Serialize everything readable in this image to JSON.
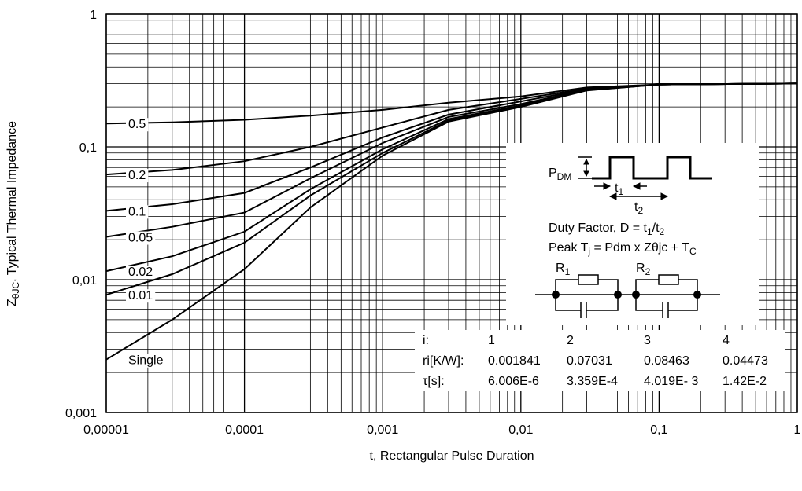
{
  "chart_data": {
    "type": "line",
    "xlabel": "t, Rectangular Pulse Duration",
    "ylabel": [
      "Z",
      "θJC",
      ", Typical Thermal Impedance"
    ],
    "log_x": true,
    "log_y": true,
    "grid": true,
    "minor_grid": true,
    "xlim": [
      1e-05,
      1
    ],
    "ylim": [
      0.001,
      1
    ],
    "xticks": [
      {
        "value": 1e-05,
        "label": "0,00001"
      },
      {
        "value": 0.0001,
        "label": "0,0001"
      },
      {
        "value": 0.001,
        "label": "0,001"
      },
      {
        "value": 0.01,
        "label": "0,01"
      },
      {
        "value": 0.1,
        "label": "0,1"
      },
      1
    ],
    "yticks": [
      {
        "value": 0.001,
        "label": "0,001"
      },
      {
        "value": 0.01,
        "label": "0,01"
      },
      {
        "value": 0.1,
        "label": "0,1"
      },
      1
    ],
    "x": [
      1e-05,
      3e-05,
      0.0001,
      0.0003,
      0.001,
      0.003,
      0.01,
      0.03,
      0.1,
      1
    ],
    "series": [
      {
        "name": "0.5",
        "color": "#000000",
        "values": [
          0.15,
          0.153,
          0.16,
          0.172,
          0.19,
          0.215,
          0.24,
          0.28,
          0.295,
          0.3
        ]
      },
      {
        "name": "0.2",
        "color": "#000000",
        "values": [
          0.062,
          0.067,
          0.078,
          0.1,
          0.14,
          0.19,
          0.23,
          0.275,
          0.295,
          0.3
        ]
      },
      {
        "name": "0.1",
        "color": "#000000",
        "values": [
          0.033,
          0.037,
          0.045,
          0.07,
          0.118,
          0.175,
          0.22,
          0.272,
          0.295,
          0.3
        ]
      },
      {
        "name": "0.05",
        "color": "#000000",
        "values": [
          0.021,
          0.025,
          0.032,
          0.058,
          0.107,
          0.168,
          0.21,
          0.27,
          0.295,
          0.3
        ]
      },
      {
        "name": "0.02",
        "color": "#000000",
        "values": [
          0.0116,
          0.015,
          0.023,
          0.048,
          0.096,
          0.162,
          0.205,
          0.268,
          0.295,
          0.3
        ]
      },
      {
        "name": "0.01",
        "color": "#000000",
        "values": [
          0.0077,
          0.011,
          0.019,
          0.043,
          0.09,
          0.158,
          0.202,
          0.267,
          0.295,
          0.3
        ]
      },
      {
        "name": "Single",
        "color": "#000000",
        "values": [
          0.0025,
          0.005,
          0.012,
          0.035,
          0.086,
          0.155,
          0.2,
          0.266,
          0.295,
          0.3
        ]
      }
    ],
    "inset": {
      "pdm": [
        "P",
        "DM"
      ],
      "t1": [
        "t",
        "1"
      ],
      "t2": [
        "t",
        "2"
      ],
      "duty": [
        "Duty Factor, D = t",
        "1",
        "/t",
        "2"
      ],
      "peak": [
        "Peak T",
        "j",
        " = Pdm x Zθjc + T",
        "C"
      ],
      "r1": [
        "R",
        "1"
      ],
      "r2": [
        "R",
        "2"
      ],
      "table": [
        [
          "i:",
          "1",
          "2",
          "3",
          "4"
        ],
        [
          "ri[K/W]:",
          "0.001841",
          "0.07031",
          "0.08463",
          "0.04473"
        ],
        [
          "τ[s]:",
          "6.006E-6",
          "3.359E-4",
          "4.019E- 3",
          "1.42E-2"
        ]
      ]
    }
  }
}
